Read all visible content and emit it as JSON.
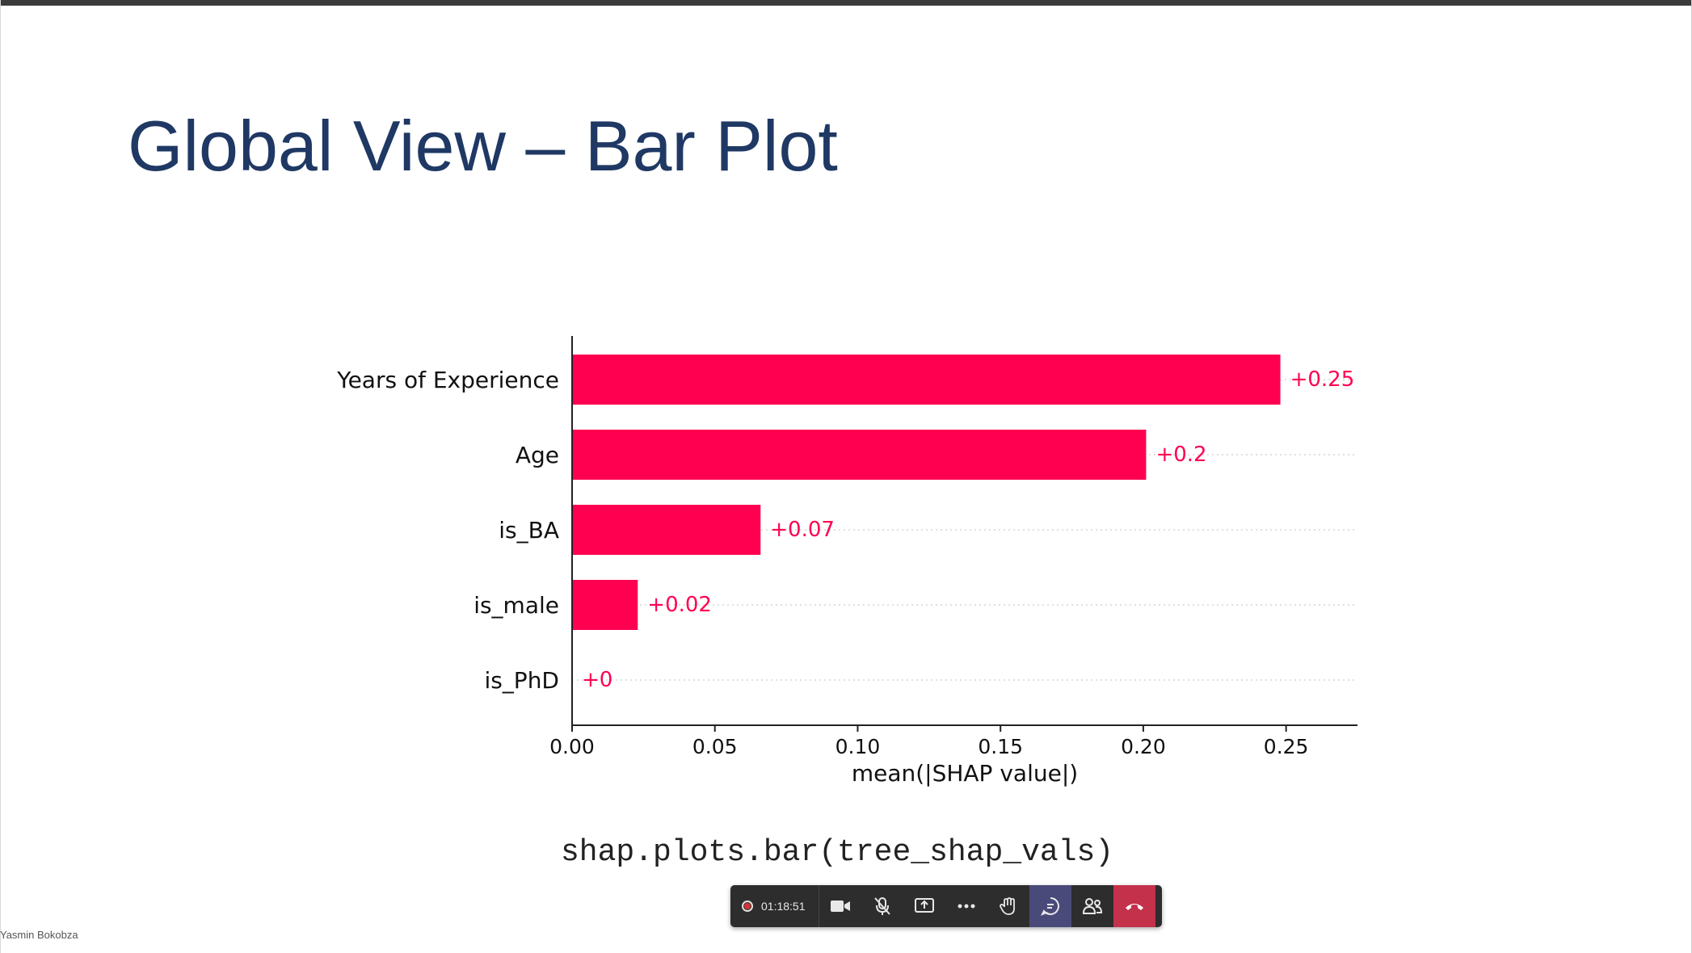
{
  "slide": {
    "title": "Global View – Bar Plot",
    "code": "shap.plots.bar(tree_shap_vals)"
  },
  "chart_data": {
    "type": "bar",
    "orientation": "horizontal",
    "categories": [
      "Years of Experience",
      "Age",
      "is_BA",
      "is_male",
      "is_PhD"
    ],
    "values": [
      0.248,
      0.201,
      0.066,
      0.023,
      0.0
    ],
    "data_labels": [
      "+0.25",
      "+0.2",
      "+0.07",
      "+0.02",
      "+0"
    ],
    "xlabel": "mean(|SHAP value|)",
    "ylabel": "",
    "xlim": [
      0,
      0.275
    ],
    "xticks": [
      0.0,
      0.05,
      0.1,
      0.15,
      0.2,
      0.25
    ],
    "xtick_labels": [
      "0.00",
      "0.05",
      "0.10",
      "0.15",
      "0.20",
      "0.25"
    ],
    "grid": "dotted horizontal per row",
    "bar_color": "#ff0051"
  },
  "presenter": {
    "name": "Yasmin Bokobza"
  },
  "toolbar": {
    "recording_time": "01:18:51",
    "buttons": [
      {
        "name": "camera-button",
        "icon": "camera-icon"
      },
      {
        "name": "mic-button",
        "icon": "mic-off-icon"
      },
      {
        "name": "share-button",
        "icon": "share-screen-icon"
      },
      {
        "name": "more-button",
        "icon": "more-icon"
      },
      {
        "name": "raise-hand-button",
        "icon": "hand-icon"
      },
      {
        "name": "chat-button",
        "icon": "chat-icon"
      },
      {
        "name": "participants-button",
        "icon": "people-icon"
      },
      {
        "name": "hang-up-button",
        "icon": "hang-up-icon"
      }
    ]
  },
  "colors": {
    "title": "#1f3864",
    "bar": "#ff0051",
    "toolbar_bg": "#2d2d2d",
    "hangup": "#c4314b",
    "chat_active": "#4a4a7a"
  }
}
